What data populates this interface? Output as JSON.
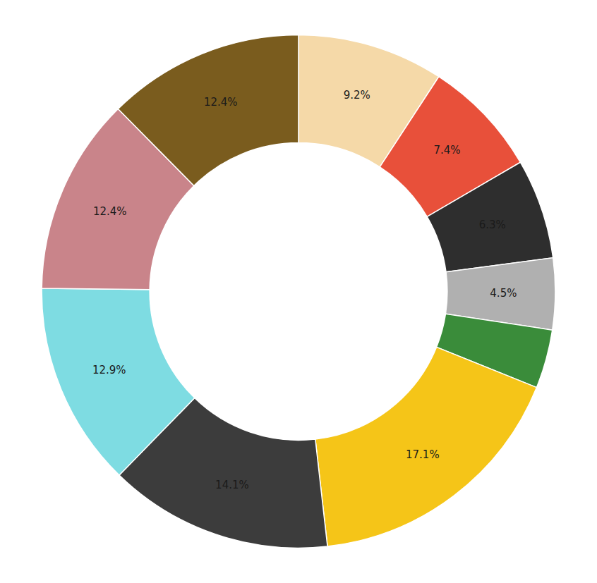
{
  "chart_data": {
    "type": "pie",
    "values": [
      9.2,
      7.4,
      6.3,
      4.5,
      3.7,
      17.1,
      14.1,
      12.9,
      12.4,
      12.4
    ],
    "value_labels": [
      "9.2%",
      "7.4%",
      "6.3%",
      "4.5%",
      null,
      "17.1%",
      "14.1%",
      "12.9%",
      "12.4%",
      "12.4%"
    ],
    "colors": [
      "#f5d9a8",
      "#e8503a",
      "#2e2e2e",
      "#b0b0b0",
      "#3a8c3a",
      "#f5c518",
      "#3c3c3c",
      "#7edce2",
      "#c9848a",
      "#7a5c1e"
    ],
    "data_labels": true
  }
}
